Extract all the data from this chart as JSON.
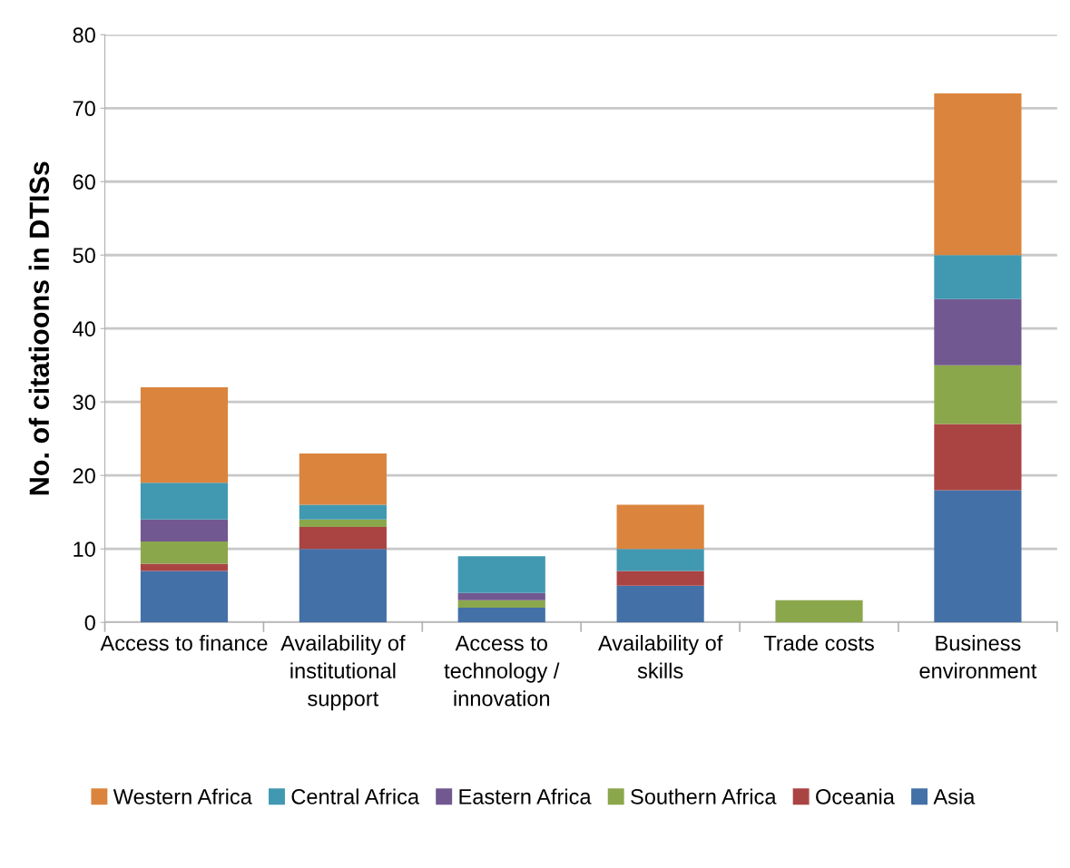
{
  "chart_data": {
    "type": "bar",
    "stacked": true,
    "ylabel": "No. of citatioons in DTISs",
    "categories": [
      "Access to finance",
      "Availability of institutional support",
      "Access to technology / innovation",
      "Availability of skills",
      "Trade costs",
      "Business environment"
    ],
    "series": [
      {
        "name": "Asia",
        "color": "#4470a8",
        "values": [
          7,
          10,
          2,
          5,
          0,
          18
        ]
      },
      {
        "name": "Oceania",
        "color": "#aa4443",
        "values": [
          1,
          3,
          0,
          2,
          0,
          9
        ]
      },
      {
        "name": "Southern Africa",
        "color": "#8ba74c",
        "values": [
          3,
          1,
          1,
          0,
          3,
          8
        ]
      },
      {
        "name": "Eastern Africa",
        "color": "#725891",
        "values": [
          3,
          0,
          1,
          0,
          0,
          9
        ]
      },
      {
        "name": "Central Africa",
        "color": "#4199b1",
        "values": [
          5,
          2,
          5,
          3,
          0,
          6
        ]
      },
      {
        "name": "Western Africa",
        "color": "#db843d",
        "values": [
          13,
          7,
          0,
          6,
          0,
          22
        ]
      }
    ],
    "ylim": [
      0,
      80
    ],
    "yticks": [
      0,
      10,
      20,
      30,
      40,
      50,
      60,
      70,
      80
    ],
    "grid": "y",
    "legend": "bottom"
  }
}
